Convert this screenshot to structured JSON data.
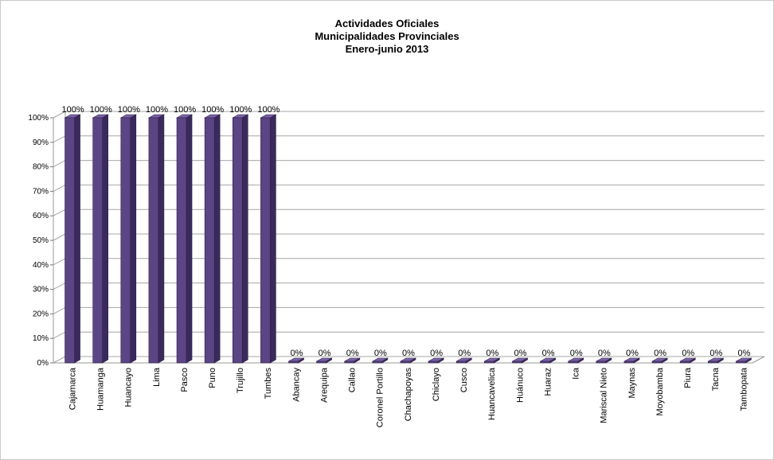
{
  "chart_data": {
    "type": "bar",
    "title_lines": [
      "Actividades Oficiales",
      "Municipalidades Provinciales",
      "Enero-junio 2013"
    ],
    "categories": [
      "Cajamarca",
      "Huamanga",
      "Huancayo",
      "Lima",
      "Pasco",
      "Puno",
      "Trujillo",
      "Tumbes",
      "Abancay",
      "Arequipa",
      "Callao",
      "Coronel Portillo",
      "Chachapoyas",
      "Chiclayo",
      "Cusco",
      "Huancavelica",
      "Huánuco",
      "Huaraz",
      "Ica",
      "Mariscal Nieto",
      "Maynas",
      "Moyobamba",
      "Piura",
      "Tacna",
      "Tambopata"
    ],
    "values": [
      100,
      100,
      100,
      100,
      100,
      100,
      100,
      100,
      0,
      0,
      0,
      0,
      0,
      0,
      0,
      0,
      0,
      0,
      0,
      0,
      0,
      0,
      0,
      0,
      0
    ],
    "data_labels": [
      "100%",
      "100%",
      "100%",
      "100%",
      "100%",
      "100%",
      "100%",
      "100%",
      "0%",
      "0%",
      "0%",
      "0%",
      "0%",
      "0%",
      "0%",
      "0%",
      "0%",
      "0%",
      "0%",
      "0%",
      "0%",
      "0%",
      "0%",
      "0%",
      "0%"
    ],
    "yticks": [
      "0%",
      "10%",
      "20%",
      "30%",
      "40%",
      "50%",
      "60%",
      "70%",
      "80%",
      "90%",
      "100%"
    ],
    "ylim": [
      0,
      100
    ],
    "grid": true,
    "legend": "none",
    "colors": {
      "bar": "#5b4584",
      "bar_side": "#3a2a5c",
      "bar_top": "#7a62a6"
    }
  }
}
